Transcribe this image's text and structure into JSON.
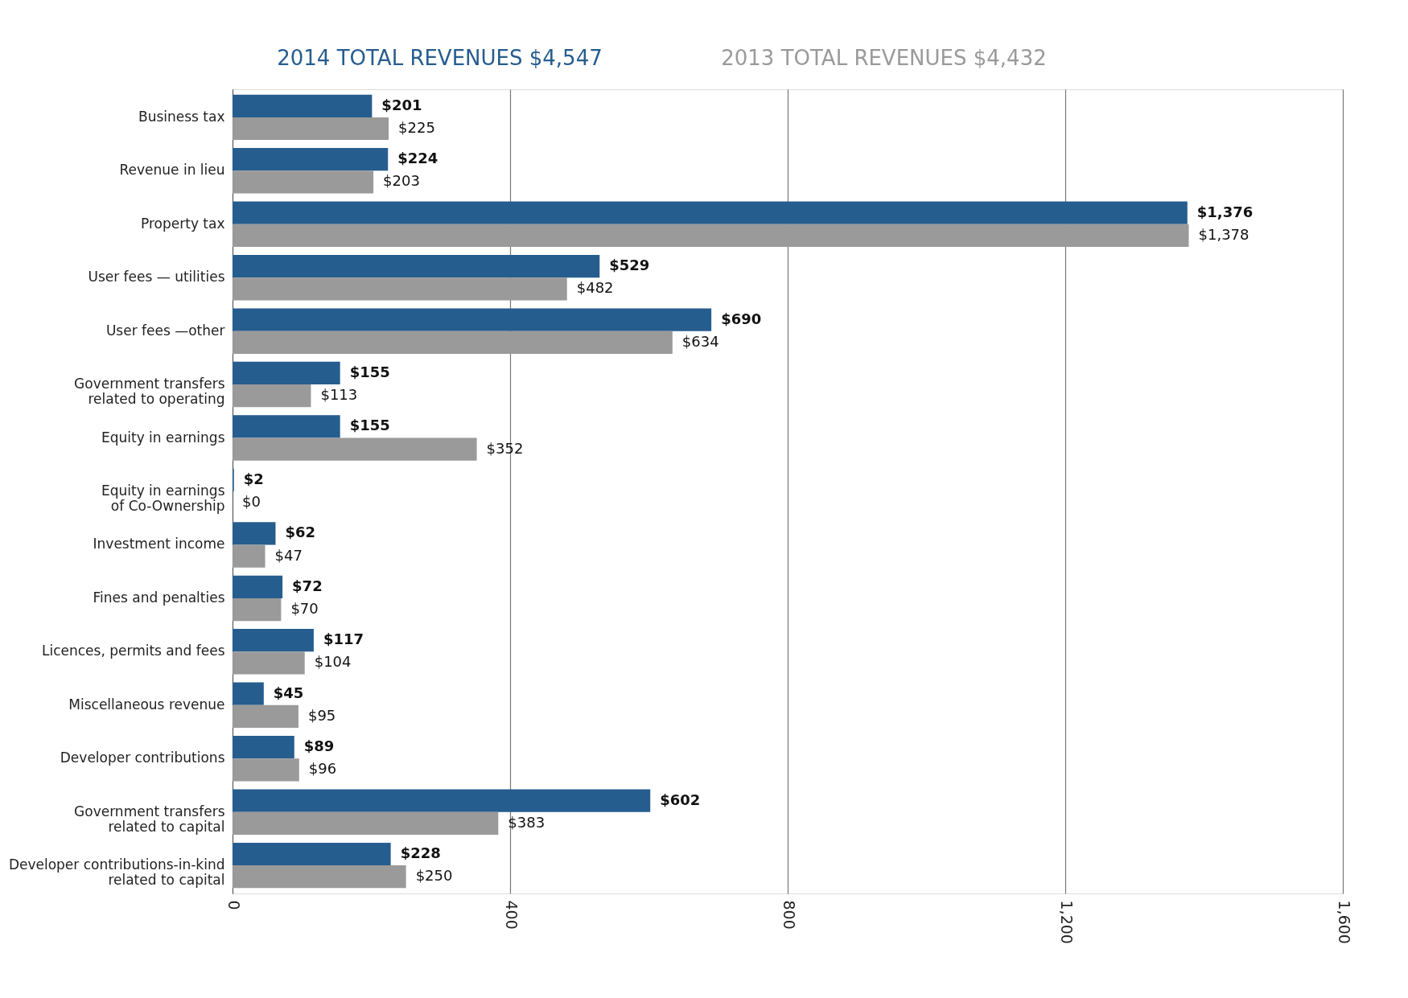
{
  "chart_data": {
    "type": "bar",
    "orientation": "horizontal",
    "categories": [
      "Business tax",
      "Revenue in lieu",
      "Property tax",
      "User fees — utilities",
      "User fees —other",
      "Government transfers\nrelated to operating",
      "Equity in earnings",
      "Equity in earnings\nof Co-Ownership",
      "Investment income",
      "Fines and penalties",
      "Licences, permits and fees",
      "Miscellaneous revenue",
      "Developer contributions",
      "Government transfers\nrelated to capital",
      "Developer contributions-in-kind\nrelated to capital"
    ],
    "series": [
      {
        "name": "2014 TOTAL REVENUES $4,547",
        "color": "#265d8f",
        "values": [
          201,
          224,
          1376,
          529,
          690,
          155,
          155,
          2,
          62,
          72,
          117,
          45,
          89,
          602,
          228
        ],
        "value_labels": [
          "$201",
          "$224",
          "$1,376",
          "$529",
          "$690",
          "$155",
          "$155",
          "$2",
          "$62",
          "$72",
          "$117",
          "$45",
          "$89",
          "$602",
          "$228"
        ]
      },
      {
        "name": "2013 TOTAL REVENUES $4,432",
        "color": "#9b9a9a",
        "values": [
          225,
          203,
          1378,
          482,
          634,
          113,
          352,
          0,
          47,
          70,
          104,
          95,
          96,
          383,
          250
        ],
        "value_labels": [
          "$225",
          "$203",
          "$1,378",
          "$482",
          "$634",
          "$113",
          "$352",
          "$0",
          "$47",
          "$70",
          "$104",
          "$95",
          "$96",
          "$383",
          "$250"
        ]
      }
    ],
    "xlim": [
      0,
      1600
    ],
    "xticks": [
      {
        "value": 0,
        "label": "0"
      },
      {
        "value": 400,
        "label": "400"
      },
      {
        "value": 800,
        "label": "800"
      },
      {
        "value": 1200,
        "label": "1,200"
      },
      {
        "value": 1600,
        "label": "1,600"
      }
    ],
    "grid": "x",
    "legend": "top"
  }
}
